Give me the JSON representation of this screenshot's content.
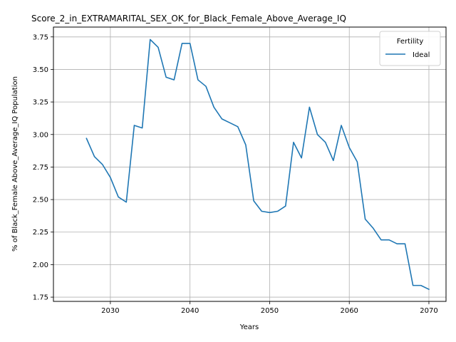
{
  "chart_data": {
    "type": "line",
    "title": "Score_2_in_EXTRAMARITAL_SEX_OK_for_Black_Female_Above_Average_IQ",
    "xlabel": "Years",
    "ylabel": "% of Black_Female Above_Average_IQ Population",
    "xlim": [
      2022.85,
      2072.15
    ],
    "ylim": [
      1.7175,
      3.8255
    ],
    "grid": true,
    "legend_placement": "top-right",
    "legend_title": "Fertility",
    "x_ticks": [
      2030,
      2040,
      2050,
      2060,
      2070
    ],
    "x_tick_labels": [
      "2030",
      "2040",
      "2050",
      "2060",
      "2070"
    ],
    "y_ticks": [
      1.75,
      2.0,
      2.25,
      2.5,
      2.75,
      3.0,
      3.25,
      3.5,
      3.75
    ],
    "y_tick_labels": [
      "1.75",
      "2.00",
      "2.25",
      "2.50",
      "2.75",
      "3.00",
      "3.25",
      "3.50",
      "3.75"
    ],
    "x": [
      2027,
      2028,
      2029,
      2030,
      2031,
      2032,
      2033,
      2034,
      2035,
      2036,
      2037,
      2038,
      2039,
      2040,
      2041,
      2042,
      2043,
      2044,
      2045,
      2046,
      2047,
      2048,
      2049,
      2050,
      2051,
      2052,
      2053,
      2054,
      2055,
      2056,
      2057,
      2058,
      2059,
      2060,
      2061,
      2062,
      2063,
      2064,
      2065,
      2066,
      2067,
      2068,
      2069,
      2070
    ],
    "series": [
      {
        "name": "Ideal",
        "color": "#1f77b4",
        "values": [
          2.97,
          2.83,
          2.77,
          2.67,
          2.52,
          2.48,
          3.07,
          3.05,
          3.73,
          3.67,
          3.44,
          3.42,
          3.7,
          3.7,
          3.42,
          3.37,
          3.21,
          3.12,
          3.09,
          3.06,
          2.92,
          2.49,
          2.41,
          2.4,
          2.41,
          2.45,
          2.94,
          2.82,
          3.21,
          3.0,
          2.94,
          2.8,
          3.07,
          2.9,
          2.79,
          2.35,
          2.28,
          2.19,
          2.19,
          2.16,
          2.16,
          1.84,
          1.84,
          1.81
        ]
      }
    ]
  }
}
